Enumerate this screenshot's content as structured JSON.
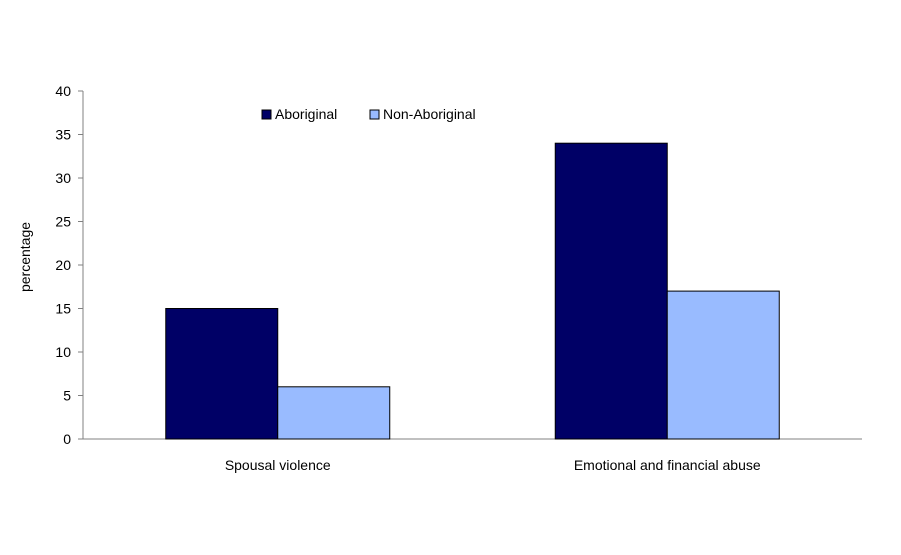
{
  "chart_data": {
    "type": "bar",
    "title": "",
    "xlabel": "",
    "ylabel": "percentage",
    "ylim": [
      0,
      40
    ],
    "yticks": [
      0,
      5,
      10,
      15,
      20,
      25,
      30,
      35,
      40
    ],
    "grid": false,
    "legend_position": "top-left",
    "categories": [
      "Spousal violence",
      "Emotional and financial abuse"
    ],
    "series": [
      {
        "name": "Aboriginal",
        "values": [
          15,
          34
        ],
        "color": "#000066"
      },
      {
        "name": "Non-Aboriginal",
        "values": [
          6,
          17
        ],
        "color": "#99bbff"
      }
    ]
  }
}
